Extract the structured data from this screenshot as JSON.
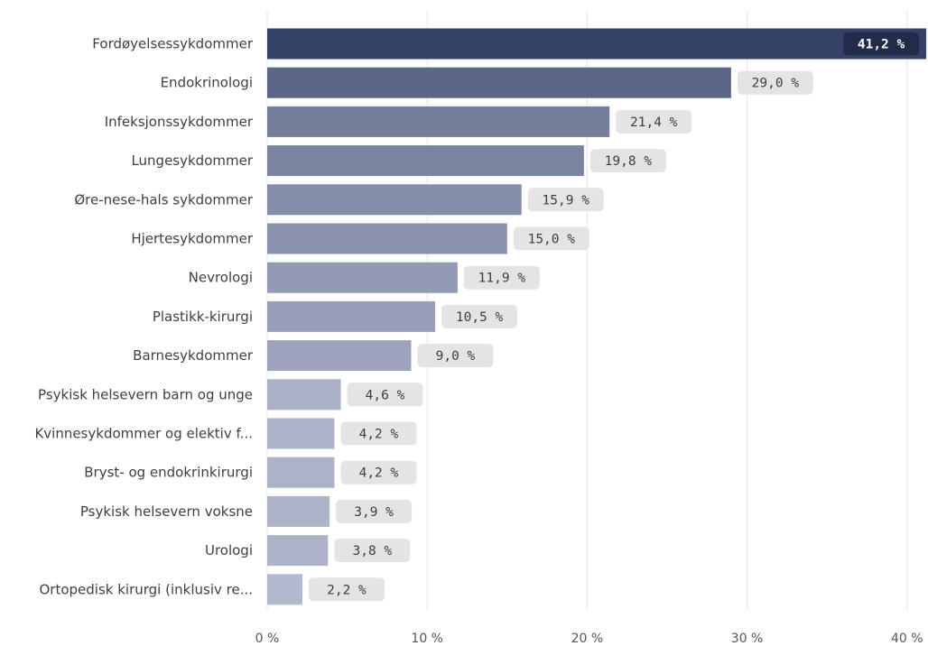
{
  "chart_data": {
    "type": "bar",
    "orientation": "horizontal",
    "categories": [
      "Fordøyelsessykdommer",
      "Endokrinologi",
      "Infeksjonssykdommer",
      "Lungesykdommer",
      "Øre-nese-hals sykdommer",
      "Hjertesykdommer",
      "Nevrologi",
      "Plastikk-kirurgi",
      "Barnesykdommer",
      "Psykisk helsevern barn og unge",
      "Kvinnesykdommer og elektiv f...",
      "Bryst- og endokrinkirurgi",
      "Psykisk helsevern voksne",
      "Urologi",
      "Ortopedisk kirurgi (inklusiv re..."
    ],
    "values": [
      41.2,
      29.0,
      21.4,
      19.8,
      15.9,
      15.0,
      11.9,
      10.5,
      9.0,
      4.6,
      4.2,
      4.2,
      3.9,
      3.8,
      2.2
    ],
    "data_labels": [
      "41,2 %",
      "29,0 %",
      "21,4 %",
      "19,8 %",
      "15,9 %",
      "15,0 %",
      "11,9 %",
      "10,5 %",
      "9,0 %",
      "4,6 %",
      "4,2 %",
      "4,2 %",
      "3,9 %",
      "3,8 %",
      "2,2 %"
    ],
    "x_ticks": [
      0,
      10,
      20,
      30,
      40
    ],
    "x_tick_labels": [
      "0 %",
      "10 %",
      "20 %",
      "30 %",
      "40 %"
    ],
    "xlim": [
      0,
      41.2
    ],
    "title": "",
    "xlabel": "",
    "ylabel": "",
    "grid": "vertical",
    "legend": "none",
    "colors": {
      "bar_max": "#354268",
      "bar_min": "#b2b8cd",
      "gridline": "#e5e5e5",
      "label_box": "#e4e4e4",
      "inside_label_box": "#222c4a"
    }
  }
}
